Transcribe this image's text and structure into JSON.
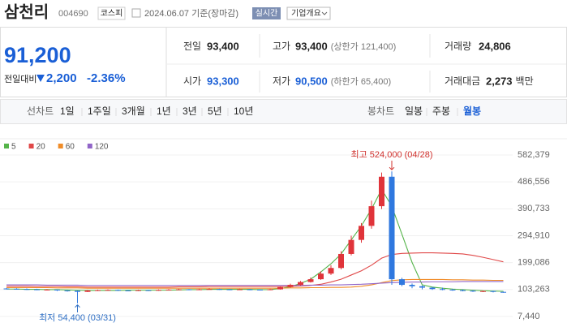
{
  "header": {
    "name": "삼천리",
    "code": "004690",
    "market": "코스피",
    "date": "2024.06.07 기준(장마감)",
    "realtime": "실시간",
    "overview": "기업개요"
  },
  "quote": {
    "price": "91,200",
    "change_label": "전일대비",
    "change": "2,200",
    "change_rate": "-2.36%",
    "color": "#1a5fd6"
  },
  "stats": [
    {
      "label": "전일",
      "value": "93,400"
    },
    {
      "label": "고가",
      "value": "93,400",
      "note": "(상한가 121,400)"
    },
    {
      "label": "거래량",
      "value": "24,806"
    },
    {
      "label": "시가",
      "value": "93,300",
      "color": "#1a5fd6"
    },
    {
      "label": "저가",
      "value": "90,500",
      "note": "(하한가 65,400)",
      "color": "#1a5fd6"
    },
    {
      "label": "거래대금",
      "value": "2,273",
      "unit": "백만"
    }
  ],
  "tabs": {
    "line_label": "선차트",
    "line": [
      "1일",
      "1주일",
      "3개월",
      "1년",
      "3년",
      "5년",
      "10년"
    ],
    "candle_label": "봉차트",
    "candle": [
      "일봉",
      "주봉",
      "월봉"
    ],
    "active": 2
  },
  "chart_data": {
    "type": "candlestick",
    "up_color": "#e0343a",
    "down_color": "#2f78df",
    "grid": true,
    "ylim": [
      -21420,
      599700
    ],
    "yticks": [
      {
        "value": 582379,
        "label": "582,379"
      },
      {
        "value": 486556,
        "label": "486,556"
      },
      {
        "value": 390733,
        "label": "390,733"
      },
      {
        "value": 294910,
        "label": "294,910"
      },
      {
        "value": 199086,
        "label": "199,086"
      },
      {
        "value": 103263,
        "label": "103,263"
      },
      {
        "value": 7440,
        "label": "7,440"
      }
    ],
    "open": [
      107000,
      106000,
      105000,
      104000,
      102000,
      103000,
      100000,
      99000,
      95000,
      100000,
      101000,
      102000,
      100000,
      99000,
      101000,
      100000,
      102000,
      103000,
      104000,
      103000,
      104000,
      105000,
      104000,
      103000,
      104000,
      103000,
      102000,
      104000,
      112000,
      120000,
      130000,
      140000,
      160000,
      180000,
      230000,
      280000,
      330000,
      400000,
      505000,
      140000,
      120000,
      115000,
      110000,
      105000,
      103000,
      101000,
      99000,
      97000,
      98000,
      95000
    ],
    "high": [
      109000,
      108000,
      107000,
      106000,
      105000,
      104000,
      101000,
      100000,
      102000,
      103000,
      104000,
      103000,
      101000,
      103000,
      102000,
      104000,
      105000,
      106000,
      105000,
      106000,
      107000,
      106000,
      105000,
      106000,
      105000,
      104000,
      106000,
      114000,
      124000,
      134000,
      146000,
      168000,
      190000,
      240000,
      295000,
      340000,
      420000,
      520000,
      524000,
      145000,
      125000,
      118000,
      113000,
      110000,
      106000,
      104000,
      101000,
      100000,
      99000,
      96000
    ],
    "low": [
      104000,
      103000,
      102000,
      101000,
      100000,
      98000,
      96000,
      54400,
      94000,
      98000,
      99000,
      98000,
      97000,
      98000,
      98000,
      99000,
      101000,
      102000,
      101000,
      102000,
      103000,
      102000,
      101000,
      102000,
      101000,
      100000,
      101000,
      103000,
      110000,
      118000,
      128000,
      138000,
      155000,
      175000,
      225000,
      270000,
      320000,
      390000,
      120000,
      115000,
      108000,
      104000,
      102000,
      101000,
      99000,
      97000,
      95000,
      94000,
      93000,
      92000
    ],
    "close": [
      106000,
      105000,
      104000,
      103000,
      103000,
      100000,
      99000,
      95000,
      100000,
      101000,
      102000,
      100000,
      99000,
      101000,
      100000,
      102000,
      103000,
      104000,
      103000,
      104000,
      105000,
      104000,
      103000,
      104000,
      103000,
      102000,
      104000,
      112000,
      120000,
      130000,
      140000,
      160000,
      180000,
      230000,
      280000,
      330000,
      400000,
      505000,
      140000,
      120000,
      115000,
      110000,
      105000,
      103000,
      101000,
      99000,
      97000,
      98000,
      95000,
      93000
    ],
    "series": [
      {
        "name": "5",
        "color": "#55b44a",
        "values": [
          105000,
          105000,
          104000,
          104000,
          103000,
          103000,
          102000,
          101000,
          100000,
          100000,
          100000,
          100000,
          101000,
          101000,
          101000,
          101000,
          101000,
          102000,
          103000,
          103000,
          104000,
          104000,
          104000,
          104000,
          104000,
          103000,
          103000,
          107000,
          113000,
          125000,
          140000,
          166000,
          195000,
          230000,
          280000,
          330000,
          390000,
          460000,
          400000,
          300000,
          200000,
          120000,
          112000,
          108000,
          105000,
          103000,
          101000,
          99000,
          98000,
          97000
        ]
      },
      {
        "name": "20",
        "color": "#e04848",
        "values": [
          115000,
          115000,
          115000,
          114000,
          114000,
          114000,
          113000,
          113000,
          112000,
          112000,
          112000,
          112000,
          112000,
          112000,
          112000,
          112000,
          112000,
          113000,
          113000,
          113000,
          114000,
          114000,
          114000,
          114000,
          114000,
          114000,
          114000,
          114000,
          115000,
          116000,
          118000,
          122000,
          130000,
          140000,
          155000,
          170000,
          190000,
          215000,
          228000,
          232000,
          233000,
          234000,
          234000,
          233000,
          232000,
          230000,
          225000,
          218000,
          210000,
          202000
        ]
      },
      {
        "name": "60",
        "color": "#f08c28",
        "values": [
          110000,
          110000,
          110000,
          110000,
          110000,
          109000,
          109000,
          109000,
          108000,
          108000,
          108000,
          108000,
          108000,
          108000,
          108000,
          108000,
          108000,
          108000,
          108000,
          108000,
          108000,
          108000,
          108000,
          108000,
          108000,
          108000,
          108000,
          108000,
          109000,
          109000,
          110000,
          110000,
          111000,
          111000,
          112000,
          115000,
          120000,
          128000,
          135000,
          138000,
          139000,
          139000,
          139000,
          139000,
          138000,
          138000,
          137000,
          137000,
          136000,
          136000
        ]
      },
      {
        "name": "120",
        "color": "#9165c8",
        "values": [
          120000,
          120000,
          120000,
          120000,
          119000,
          119000,
          119000,
          119000,
          118000,
          118000,
          118000,
          118000,
          118000,
          118000,
          118000,
          118000,
          118000,
          118000,
          118000,
          118000,
          118000,
          118000,
          118000,
          118000,
          118000,
          118000,
          118000,
          118000,
          118000,
          118000,
          119000,
          119000,
          120000,
          120000,
          121000,
          122000,
          124000,
          126000,
          128000,
          129000,
          130000,
          130000,
          131000,
          131000,
          131000,
          132000,
          132000,
          132000,
          132000,
          132000
        ]
      }
    ],
    "annotations": [
      {
        "text": "최고 524,000 (04/28)",
        "color": "#d0312d"
      },
      {
        "text": "최저 54,400 (03/31)",
        "color": "#2f6fc4"
      }
    ]
  }
}
